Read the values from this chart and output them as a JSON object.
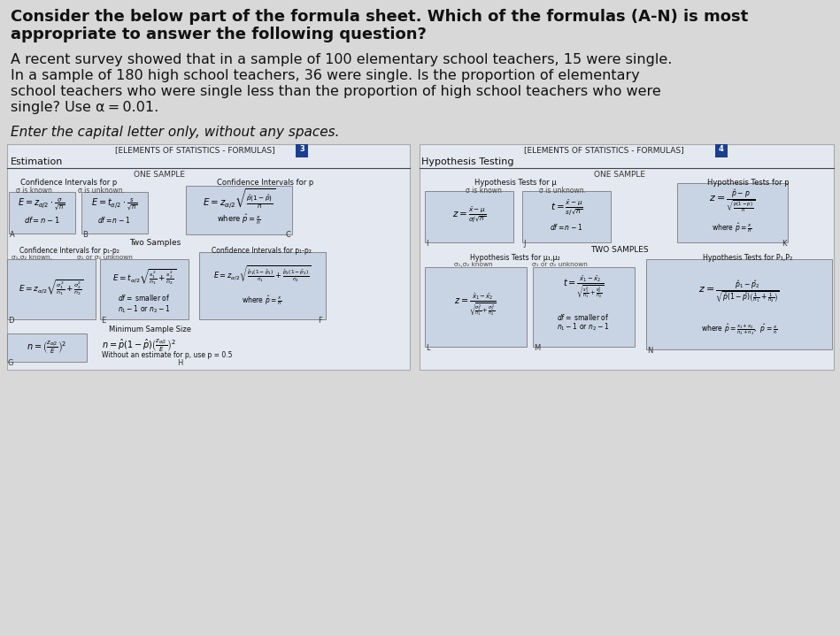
{
  "bg_color": "#d8d8d8",
  "white": "#f0f0f0",
  "box_fc": "#c8d4e4",
  "box_ec": "#888888",
  "tab_blue": "#1a3f8f",
  "text_dark": "#1a1a1a",
  "title_line1": "Consider the below part of the formula sheet. Which of the formulas (A-N) is most",
  "title_line2": "appropriate to answer the following question?",
  "body_line1": "A recent survey showed that in a sample of 100 elementary school teachers, 15 were single.",
  "body_line2": "In a sample of 180 high school teachers, 36 were single. Is the proportion of elementary",
  "body_line3": "school teachers who were single less than the proportion of high school teachers who were",
  "body_line4": "single? Use α = 0.01.",
  "instruction": "Enter the capital letter only, without any spaces.",
  "header_text": "[ELEMENTS OF STATISTICS - FORMULAS]",
  "tab_L": "3",
  "tab_R": "4",
  "sec_estimation": "Estimation",
  "sec_ht": "Hypothesis Testing",
  "one_sample": "ONE SAMPLE",
  "two_samples_L": "Two Samples",
  "two_samples_R": "TWO SAMPLES",
  "min_sample": "Minimum Sample Size"
}
